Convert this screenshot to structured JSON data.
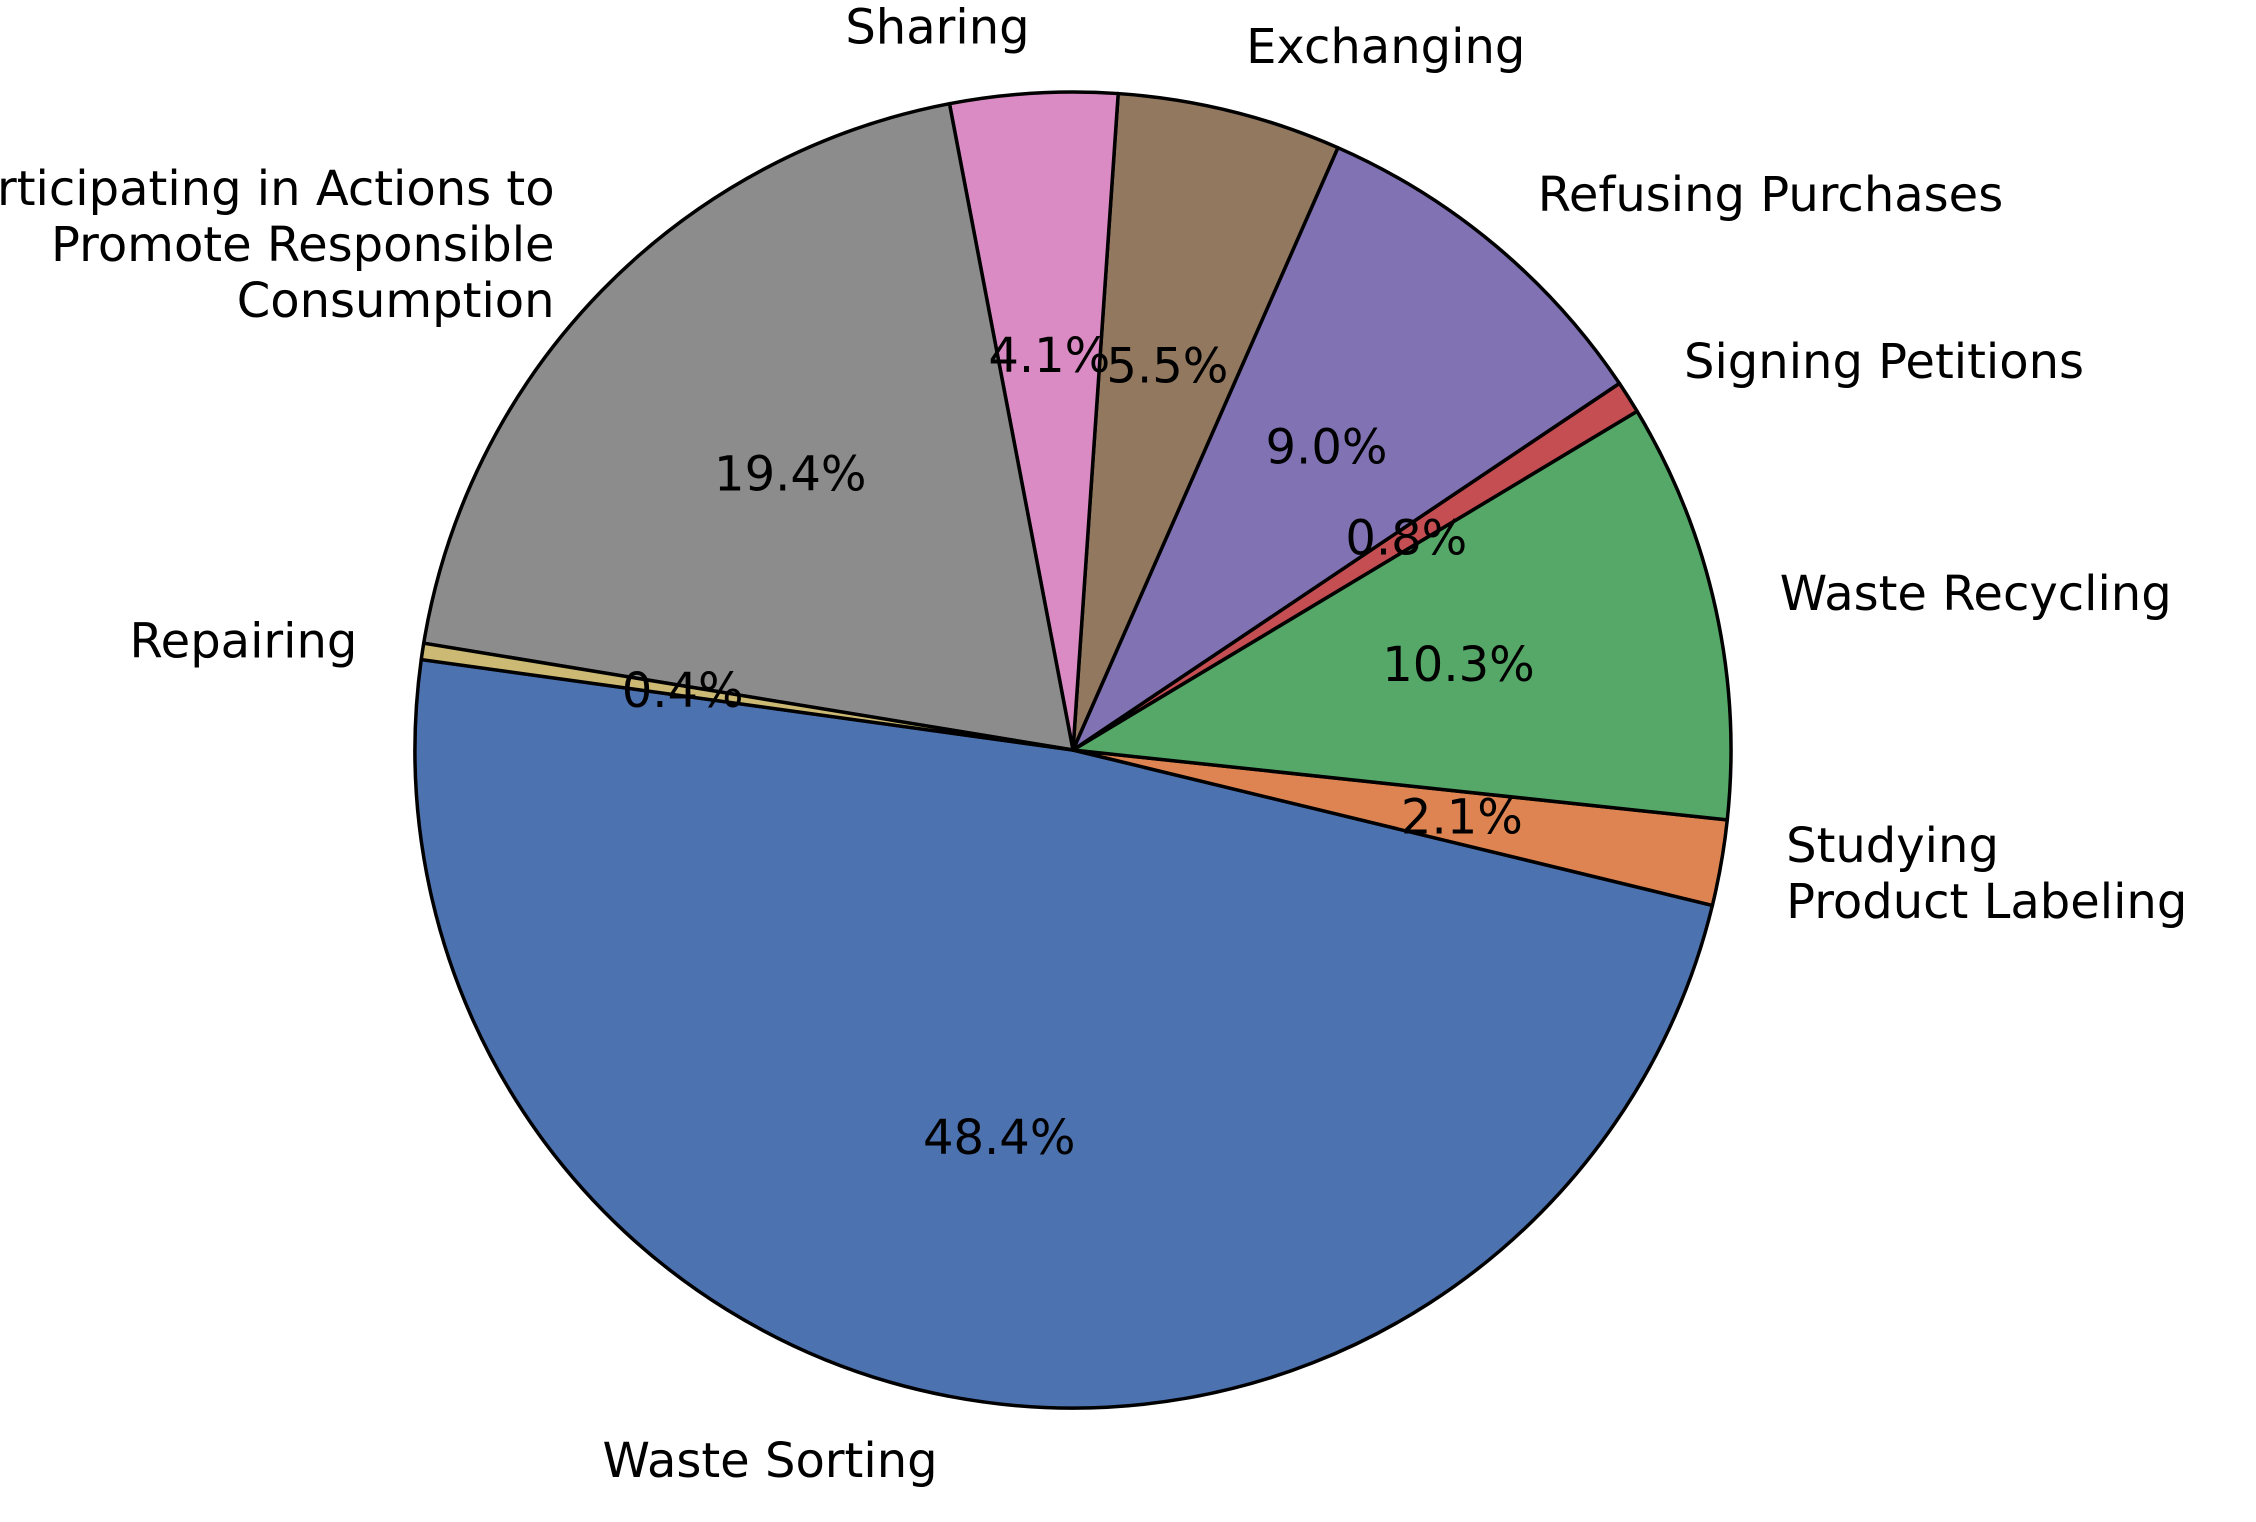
{
  "chart_data": {
    "type": "pie",
    "start_angle_deg": 172.1,
    "direction": "counterclockwise",
    "slices": [
      {
        "label": "Waste Sorting",
        "value": 48.4,
        "pct_label": "48.4%",
        "color": "#4c72b0"
      },
      {
        "label": "Studying\nProduct Labeling",
        "value": 2.1,
        "pct_label": "2.1%",
        "color": "#dd8452"
      },
      {
        "label": "Waste Recycling",
        "value": 10.3,
        "pct_label": "10.3%",
        "color": "#55a868"
      },
      {
        "label": "Signing Petitions",
        "value": 0.8,
        "pct_label": "0.8%",
        "color": "#c44e52"
      },
      {
        "label": "Refusing Purchases",
        "value": 9.0,
        "pct_label": "9.0%",
        "color": "#8172b3"
      },
      {
        "label": "Exchanging",
        "value": 5.5,
        "pct_label": "5.5%",
        "color": "#937860"
      },
      {
        "label": "Sharing",
        "value": 4.1,
        "pct_label": "4.1%",
        "color": "#da8bc3"
      },
      {
        "label": "Participating in Actions to\nPromote Responsible\nConsumption",
        "value": 19.4,
        "pct_label": "19.4%",
        "color": "#8c8c8c"
      },
      {
        "label": "Repairing",
        "value": 0.4,
        "pct_label": "0.4%",
        "color": "#ccb974"
      }
    ]
  }
}
